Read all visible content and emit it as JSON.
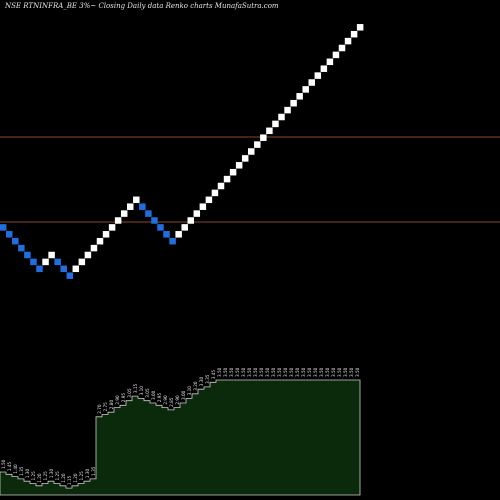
{
  "chart_data": {
    "type": "renko",
    "title": "NSE RTNINFRA_BE 3%~  Closing Daily data  Renko  charts MunafaSutra.com",
    "colors": {
      "background": "#000000",
      "up_brick": "#ffffff",
      "down_brick": "#1f6fe0",
      "reference_line": "#8a4a24",
      "volume_fill": "#0b2a0b",
      "volume_stroke": "#cccccc",
      "label_text": "#e6e6e6"
    },
    "directions": [
      "down",
      "down",
      "down",
      "down",
      "down",
      "down",
      "down",
      "up",
      "up",
      "down",
      "down",
      "down",
      "up",
      "up",
      "up",
      "up",
      "up",
      "up",
      "up",
      "up",
      "up",
      "up",
      "up",
      "down",
      "down",
      "down",
      "down",
      "down",
      "down",
      "up",
      "up",
      "up",
      "up",
      "up",
      "up",
      "up",
      "up",
      "up",
      "up",
      "up",
      "up",
      "up",
      "up",
      "up",
      "up",
      "up",
      "up",
      "up",
      "up",
      "up",
      "up",
      "up",
      "up",
      "up",
      "up",
      "up",
      "up",
      "up",
      "up",
      "up"
    ],
    "volume": {
      "labels": [
        "1.50",
        "1.45",
        "1.40",
        "1.35",
        "1.30",
        "1.25",
        "1.20",
        "1.25",
        "1.30",
        "1.25",
        "1.20",
        "1.15",
        "1.20",
        "1.25",
        "1.30",
        "1.35",
        "2.70",
        "2.75",
        "2.80",
        "2.90",
        "2.95",
        "3.05",
        "3.15",
        "3.10",
        "3.05",
        "3.00",
        "2.95",
        "2.90",
        "2.85",
        "2.90",
        "3.00",
        "3.10",
        "3.20",
        "3.30",
        "3.35",
        "3.45",
        "3.50",
        "3.50",
        "3.50",
        "3.50",
        "3.50",
        "3.50",
        "3.50",
        "3.50",
        "3.50",
        "3.50",
        "3.50",
        "3.50",
        "3.50",
        "3.50",
        "3.50",
        "3.50",
        "3.50",
        "3.50",
        "3.50",
        "3.50",
        "3.50",
        "3.50",
        "3.50",
        "3.50"
      ],
      "values": [
        1.5,
        1.45,
        1.4,
        1.35,
        1.3,
        1.25,
        1.2,
        1.25,
        1.3,
        1.25,
        1.2,
        1.15,
        1.2,
        1.25,
        1.3,
        1.35,
        2.7,
        2.75,
        2.8,
        2.9,
        2.95,
        3.05,
        3.15,
        3.1,
        3.05,
        3.0,
        2.95,
        2.9,
        2.85,
        2.9,
        3.0,
        3.1,
        3.2,
        3.3,
        3.35,
        3.45,
        3.5,
        3.5,
        3.5,
        3.5,
        3.5,
        3.5,
        3.5,
        3.5,
        3.5,
        3.5,
        3.5,
        3.5,
        3.5,
        3.5,
        3.5,
        3.5,
        3.5,
        3.5,
        3.5,
        3.5,
        3.5,
        3.5,
        3.5,
        3.5
      ]
    },
    "reference_lines": 2,
    "grid": false,
    "legend": "none"
  }
}
